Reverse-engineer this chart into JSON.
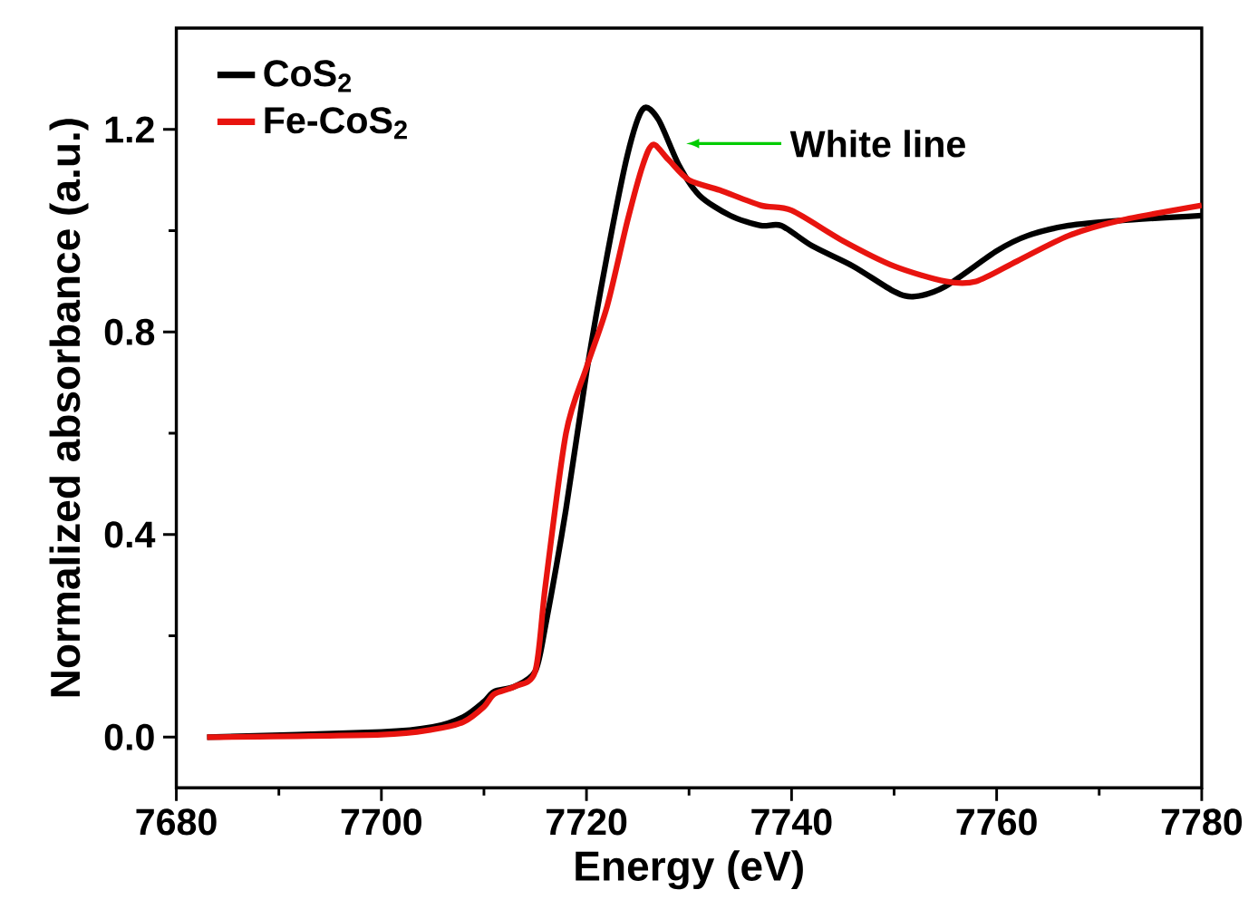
{
  "chart_data": {
    "type": "line",
    "xlabel": "Energy (eV)",
    "ylabel": "Normalized absorbance (a.u.)",
    "xlim": [
      7680,
      7780
    ],
    "ylim": [
      -0.1,
      1.4
    ],
    "xticks": [
      7680,
      7700,
      7720,
      7740,
      7760,
      7780
    ],
    "yticks": [
      {
        "value": 0,
        "label": "0.0"
      },
      0.4,
      0.8,
      1.2
    ],
    "legend": "top left",
    "grid": false,
    "marker": "none",
    "line_style": "solid",
    "annotations": [
      "White line"
    ],
    "series": [
      {
        "name": "CoS$_{2}$",
        "color": "#000000",
        "x": [
          7683,
          7700,
          7705,
          7708,
          7710,
          7711,
          7713,
          7715,
          7716,
          7718,
          7720,
          7722,
          7724,
          7725.5,
          7727,
          7729,
          7731,
          7734,
          7737,
          7739,
          7742,
          7746,
          7750,
          7752,
          7755,
          7760,
          7763,
          7767,
          7772,
          7780
        ],
        "values": [
          0,
          0.01,
          0.02,
          0.04,
          0.07,
          0.09,
          0.1,
          0.13,
          0.22,
          0.45,
          0.72,
          0.95,
          1.15,
          1.24,
          1.22,
          1.13,
          1.07,
          1.03,
          1.01,
          1.01,
          0.97,
          0.93,
          0.88,
          0.87,
          0.89,
          0.96,
          0.99,
          1.01,
          1.02,
          1.03
        ]
      },
      {
        "name": "Fe-CoS$_{2}$",
        "color": "#e8140f",
        "x": [
          7683,
          7700,
          7705,
          7708,
          7710,
          7711,
          7713,
          7715,
          7716,
          7718,
          7720,
          7722,
          7724,
          7725.5,
          7726.5,
          7728,
          7730,
          7733,
          7737,
          7740,
          7745,
          7750,
          7755,
          7758,
          7762,
          7767,
          7772,
          7780
        ],
        "values": [
          0,
          0.005,
          0.015,
          0.03,
          0.06,
          0.085,
          0.1,
          0.13,
          0.3,
          0.6,
          0.73,
          0.85,
          1.02,
          1.13,
          1.17,
          1.14,
          1.1,
          1.08,
          1.05,
          1.04,
          0.98,
          0.93,
          0.9,
          0.9,
          0.94,
          0.99,
          1.02,
          1.05
        ]
      }
    ]
  }
}
